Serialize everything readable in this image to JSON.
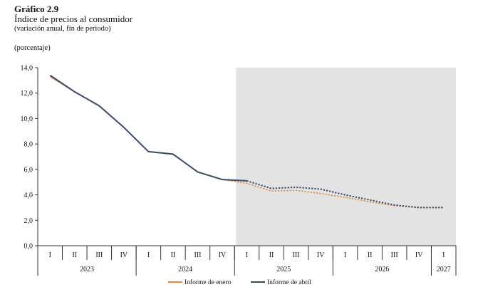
{
  "header": {
    "figure_label": "Gráfico 2.9",
    "title": "Índice de precios al consumidor",
    "subtitle": "(variación anual, fin de periodo)",
    "unit": "(porcentaje)"
  },
  "chart_data": {
    "type": "line",
    "categories": [
      "I",
      "II",
      "III",
      "IV",
      "I",
      "II",
      "III",
      "IV",
      "I",
      "II",
      "III",
      "IV",
      "I",
      "II",
      "III",
      "IV",
      "I"
    ],
    "years": [
      {
        "label": "2023",
        "span": 4
      },
      {
        "label": "2024",
        "span": 4
      },
      {
        "label": "2025",
        "span": 4
      },
      {
        "label": "2026",
        "span": 4
      },
      {
        "label": "2027",
        "span": 1
      }
    ],
    "ylim": [
      0,
      14
    ],
    "yticks": [
      "0,0",
      "2,0",
      "4,0",
      "6,0",
      "8,0",
      "10,0",
      "12,0",
      "14,0"
    ],
    "ytick_values": [
      0,
      2,
      4,
      6,
      8,
      10,
      12,
      14
    ],
    "forecast_shading_from_index": 8,
    "series": [
      {
        "name": "Informe de enero",
        "color": "#E08A3C",
        "observed_through_index": 7,
        "values": [
          13.3,
          12.1,
          11.0,
          9.3,
          7.4,
          7.2,
          5.8,
          5.2,
          4.9,
          4.3,
          4.35,
          4.1,
          3.8,
          3.45,
          3.15,
          3.0,
          3.0
        ]
      },
      {
        "name": "Informe de abril",
        "color": "#3B4A6B",
        "observed_through_index": 8,
        "values": [
          13.4,
          12.1,
          11.0,
          9.3,
          7.4,
          7.2,
          5.8,
          5.2,
          5.1,
          4.5,
          4.6,
          4.45,
          4.0,
          3.6,
          3.2,
          3.0,
          3.0
        ]
      }
    ],
    "legend_position": "bottom"
  }
}
